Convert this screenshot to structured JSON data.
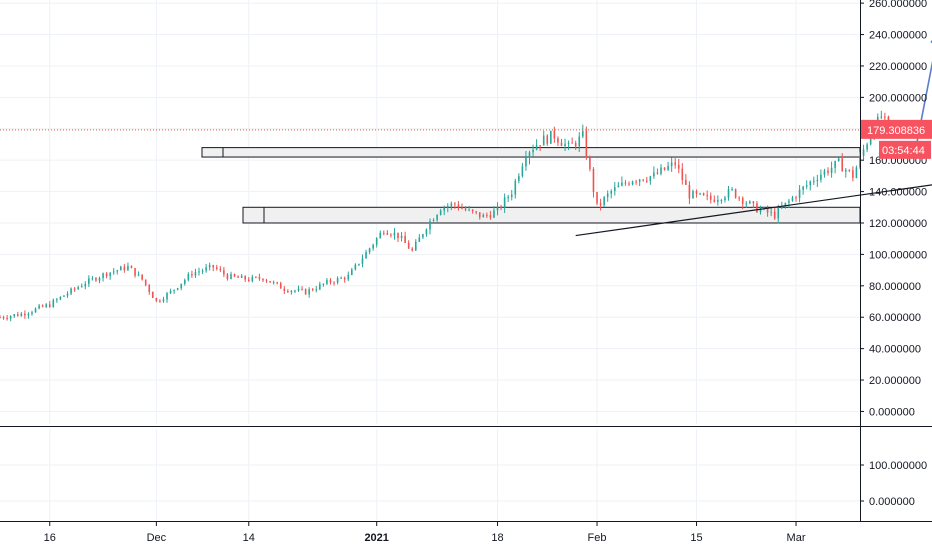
{
  "colors": {
    "grid": "#eef1f6",
    "axis_line": "#131722",
    "axis_text": "#131722",
    "up": "#26a69a",
    "down": "#ef5350",
    "price_line": "#f4511e",
    "price_tag": "#f7525f",
    "zone_fill": "#f0f0f0",
    "zone_stroke": "#131722",
    "trendline": "#131722",
    "arrow": "#5b7ec5"
  },
  "chart_data": {
    "type": "candlestick",
    "y_axis": {
      "min": -8,
      "max": 262,
      "ticks": [
        0,
        20,
        40,
        60,
        80,
        100,
        120,
        140,
        160,
        180,
        200,
        220,
        240,
        260
      ],
      "tick_labels": [
        "0.000000",
        "20.000000",
        "40.000000",
        "60.000000",
        "80.000000",
        "100.000000",
        "120.000000",
        "140.000000",
        "160.000000",
        "180.000000",
        "200.000000",
        "220.000000",
        "240.000000",
        "260.000000"
      ],
      "side": "right"
    },
    "x_axis": {
      "start": "2020-11-09",
      "end": "2021-03-10",
      "tick_dates": [
        "2020-11-16",
        "2020-12-01",
        "2020-12-14",
        "2021-01-01",
        "2021-01-18",
        "2021-02-01",
        "2021-02-15",
        "2021-03-01"
      ],
      "tick_labels": [
        "16",
        "Dec",
        "14",
        "2021",
        "18",
        "Feb",
        "15",
        "Mar"
      ],
      "bold_labels": [
        "2021"
      ]
    },
    "last_price": 179.308836,
    "last_price_label": "179.308836",
    "countdown_label": "03:54:44",
    "price_keypoints": [
      [
        "2020-11-09",
        60
      ],
      [
        "2020-11-12",
        62
      ],
      [
        "2020-11-16",
        68
      ],
      [
        "2020-11-18",
        74
      ],
      [
        "2020-11-21",
        82
      ],
      [
        "2020-11-24",
        88
      ],
      [
        "2020-11-27",
        92
      ],
      [
        "2020-11-29",
        84
      ],
      [
        "2020-12-01",
        70
      ],
      [
        "2020-12-03",
        76
      ],
      [
        "2020-12-06",
        88
      ],
      [
        "2020-12-09",
        92
      ],
      [
        "2020-12-11",
        86
      ],
      [
        "2020-12-14",
        84
      ],
      [
        "2020-12-16",
        85
      ],
      [
        "2020-12-19",
        78
      ],
      [
        "2020-12-22",
        76
      ],
      [
        "2020-12-25",
        82
      ],
      [
        "2020-12-28",
        86
      ],
      [
        "2020-12-30",
        98
      ],
      [
        "2021-01-02",
        116
      ],
      [
        "2021-01-04",
        112
      ],
      [
        "2021-01-06",
        102
      ],
      [
        "2021-01-08",
        118
      ],
      [
        "2021-01-10",
        130
      ],
      [
        "2021-01-12",
        132
      ],
      [
        "2021-01-14",
        127
      ],
      [
        "2021-01-16",
        124
      ],
      [
        "2021-01-18",
        128
      ],
      [
        "2021-01-20",
        140
      ],
      [
        "2021-01-22",
        165
      ],
      [
        "2021-01-24",
        172
      ],
      [
        "2021-01-26",
        176
      ],
      [
        "2021-01-28",
        168
      ],
      [
        "2021-01-30",
        175
      ],
      [
        "2021-02-01",
        130
      ],
      [
        "2021-02-03",
        140
      ],
      [
        "2021-02-06",
        148
      ],
      [
        "2021-02-09",
        150
      ],
      [
        "2021-02-12",
        158
      ],
      [
        "2021-02-14",
        138
      ],
      [
        "2021-02-17",
        135
      ],
      [
        "2021-02-20",
        140
      ],
      [
        "2021-02-23",
        130
      ],
      [
        "2021-02-26",
        125
      ],
      [
        "2021-03-01",
        138
      ],
      [
        "2021-03-04",
        150
      ],
      [
        "2021-03-07",
        158
      ],
      [
        "2021-03-09",
        150
      ],
      [
        "2021-03-11",
        172
      ],
      [
        "2021-03-13",
        188
      ],
      [
        "2021-03-14",
        180
      ]
    ],
    "resistance_zone": {
      "y_low": 162,
      "y_high": 168
    },
    "support_zone": {
      "y_low": 120,
      "y_high": 130
    },
    "trendline": {
      "from": [
        "2021-01-29",
        112
      ],
      "to": [
        "2021-03-29",
        150
      ]
    },
    "arrow": {
      "from": [
        "2021-03-18",
        171
      ],
      "to": [
        "2021-03-21",
        241
      ]
    },
    "lower_pane": {
      "tick_labels": [
        "100.000000",
        "0.000000"
      ]
    }
  }
}
